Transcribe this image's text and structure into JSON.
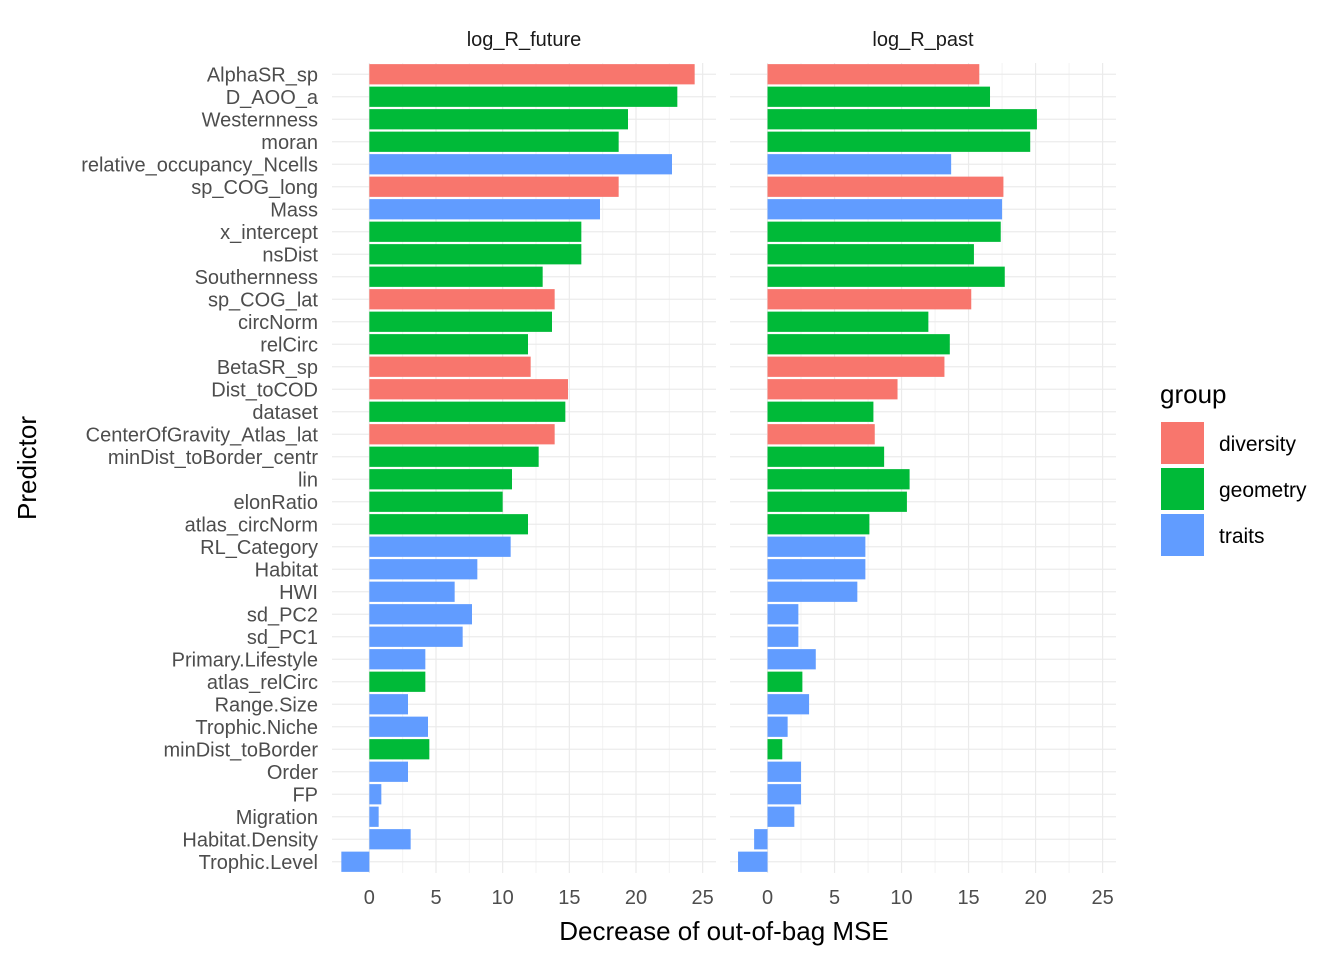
{
  "chart_data": {
    "type": "bar",
    "orientation": "horizontal",
    "xlabel": "Decrease of out-of-bag MSE",
    "ylabel": "Predictor",
    "xlim": [
      -2.8,
      26
    ],
    "xticks": [
      0,
      5,
      10,
      15,
      20,
      25
    ],
    "grid": true,
    "legend": {
      "title": "group",
      "position": "right",
      "entries": [
        {
          "name": "diversity",
          "color": "#F8766D"
        },
        {
          "name": "geometry",
          "color": "#00BA38"
        },
        {
          "name": "traits",
          "color": "#619CFF"
        }
      ]
    },
    "categories": [
      "AlphaSR_sp",
      "D_AOO_a",
      "Westernness",
      "moran",
      "relative_occupancy_Ncells",
      "sp_COG_long",
      "Mass",
      "x_intercept",
      "nsDist",
      "Southernness",
      "sp_COG_lat",
      "circNorm",
      "relCirc",
      "BetaSR_sp",
      "Dist_toCOD",
      "dataset",
      "CenterOfGravity_Atlas_lat",
      "minDist_toBorder_centr",
      "lin",
      "elonRatio",
      "atlas_circNorm",
      "RL_Category",
      "Habitat",
      "HWI",
      "sd_PC2",
      "sd_PC1",
      "Primary.Lifestyle",
      "atlas_relCirc",
      "Range.Size",
      "Trophic.Niche",
      "minDist_toBorder",
      "Order",
      "FP",
      "Migration",
      "Habitat.Density",
      "Trophic.Level"
    ],
    "groups": [
      "diversity",
      "geometry",
      "geometry",
      "geometry",
      "traits",
      "diversity",
      "traits",
      "geometry",
      "geometry",
      "geometry",
      "diversity",
      "geometry",
      "geometry",
      "diversity",
      "diversity",
      "geometry",
      "diversity",
      "geometry",
      "geometry",
      "geometry",
      "geometry",
      "traits",
      "traits",
      "traits",
      "traits",
      "traits",
      "traits",
      "geometry",
      "traits",
      "traits",
      "geometry",
      "traits",
      "traits",
      "traits",
      "traits",
      "traits"
    ],
    "panels": [
      {
        "name": "log_R_future",
        "values": [
          24.4,
          23.1,
          19.4,
          18.7,
          22.7,
          18.7,
          17.3,
          15.9,
          15.9,
          13.0,
          13.9,
          13.7,
          11.9,
          12.1,
          14.9,
          14.7,
          13.9,
          12.7,
          10.7,
          10.0,
          11.9,
          10.6,
          8.1,
          6.4,
          7.7,
          7.0,
          4.2,
          4.2,
          2.9,
          4.4,
          4.5,
          2.9,
          0.9,
          0.7,
          3.1,
          -2.1
        ]
      },
      {
        "name": "log_R_past",
        "values": [
          15.8,
          16.6,
          20.1,
          19.6,
          13.7,
          17.6,
          17.5,
          17.4,
          15.4,
          17.7,
          15.2,
          12.0,
          13.6,
          13.2,
          9.7,
          7.9,
          8.0,
          8.7,
          10.6,
          10.4,
          7.6,
          7.3,
          7.3,
          6.7,
          2.3,
          2.3,
          3.6,
          2.6,
          3.1,
          1.5,
          1.1,
          2.5,
          2.5,
          2.0,
          -1.0,
          -2.2
        ]
      }
    ]
  }
}
